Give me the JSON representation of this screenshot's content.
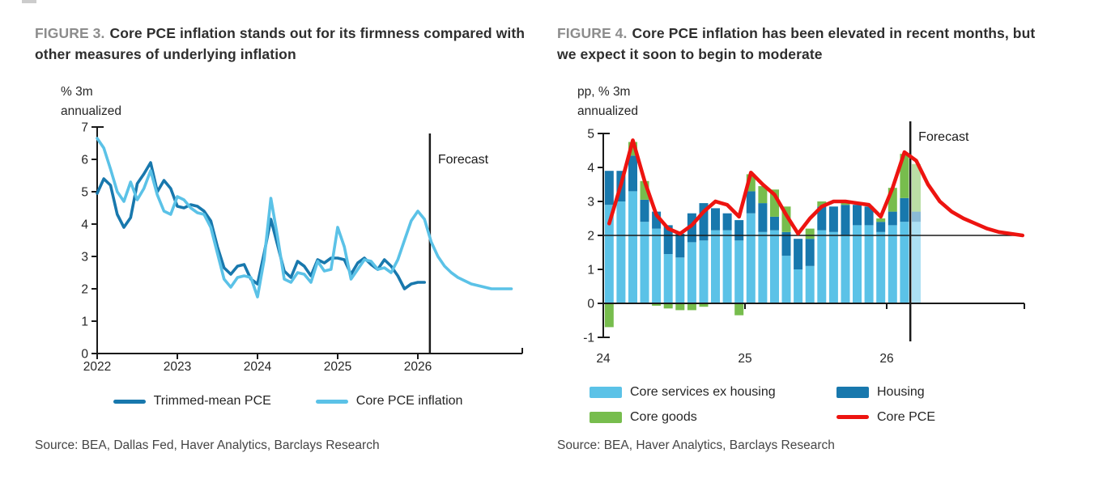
{
  "figures": [
    {
      "label": "FIGURE 3.",
      "title": "Core PCE inflation stands out for its firmness compared with other measures of underlying inflation",
      "source": "Source: BEA, Dallas Fed, Haver Analytics, Barclays Research",
      "legend": [
        {
          "label": "Trimmed-mean PCE",
          "color": "#1878ad"
        },
        {
          "label": "Core PCE inflation",
          "color": "#5bc2e7"
        }
      ]
    },
    {
      "label": "FIGURE 4.",
      "title": "Core PCE inflation has been elevated in recent months, but we expect it soon to begin to moderate",
      "source": "Source: BEA, Haver Analytics, Barclays Research",
      "legend": [
        {
          "label": "Core services ex housing",
          "color": "#5bc2e7"
        },
        {
          "label": "Housing",
          "color": "#1878ad"
        },
        {
          "label": "Core goods",
          "color": "#77bd4d"
        },
        {
          "label": "Core PCE",
          "color": "#ed1410"
        }
      ]
    }
  ],
  "chart_data": [
    {
      "type": "line",
      "title": "Core PCE inflation stands out for its firmness compared with other measures of underlying inflation",
      "ylabel": "% 3m annualized",
      "ylabel_lines": [
        "% 3m",
        "annualized"
      ],
      "xlabel": "",
      "x_start": 2022.0,
      "x_step": 0.0833,
      "xlim": [
        2022,
        2027.3
      ],
      "ylim": [
        0,
        7
      ],
      "yticks": [
        0,
        1,
        2,
        3,
        4,
        5,
        6,
        7
      ],
      "xticks": [
        {
          "label": "2022",
          "x": 2022
        },
        {
          "label": "2023",
          "x": 2023
        },
        {
          "label": "2024",
          "x": 2024
        },
        {
          "label": "2025",
          "x": 2025
        },
        {
          "label": "2026",
          "x": 2026
        }
      ],
      "forecast_x": 2026.15,
      "forecast_label": "Forecast",
      "grid": false,
      "legend_position": "bottom",
      "series": [
        {
          "name": "Trimmed-mean PCE",
          "color": "#1878ad",
          "values": [
            4.95,
            5.4,
            5.2,
            4.3,
            3.9,
            4.2,
            5.25,
            5.55,
            5.9,
            5.0,
            5.35,
            5.1,
            4.55,
            4.5,
            4.6,
            4.55,
            4.4,
            4.1,
            3.3,
            2.65,
            2.45,
            2.7,
            2.75,
            2.3,
            2.15,
            3.1,
            4.15,
            3.35,
            2.55,
            2.35,
            2.85,
            2.7,
            2.4,
            2.9,
            2.8,
            2.95,
            2.95,
            2.9,
            2.45,
            2.8,
            2.95,
            2.75,
            2.6,
            2.9,
            2.7,
            2.4,
            2.0,
            2.15,
            2.2,
            2.2
          ]
        },
        {
          "name": "Core PCE inflation",
          "color": "#5bc2e7",
          "values": [
            6.65,
            6.35,
            5.7,
            5.0,
            4.7,
            5.3,
            4.75,
            5.1,
            5.65,
            4.9,
            4.4,
            4.3,
            4.85,
            4.75,
            4.5,
            4.35,
            4.3,
            3.9,
            3.1,
            2.3,
            2.05,
            2.35,
            2.4,
            2.35,
            1.75,
            2.9,
            4.8,
            3.6,
            2.3,
            2.2,
            2.5,
            2.45,
            2.2,
            2.85,
            2.55,
            2.6,
            3.9,
            3.3,
            2.3,
            2.6,
            2.9,
            2.85,
            2.6,
            2.65,
            2.5,
            2.9,
            3.5,
            4.1,
            4.4,
            4.15,
            3.45,
            3.0,
            2.7,
            2.5,
            2.35,
            2.25,
            2.15,
            2.1,
            2.05,
            2.0,
            2.0,
            2.0,
            2.0
          ]
        }
      ]
    },
    {
      "type": "stacked-bar-with-line",
      "title": "Core PCE inflation has been elevated in recent months, but we expect it soon to begin to moderate",
      "ylabel": "pp, % 3m annualized",
      "ylabel_lines": [
        "pp, % 3m",
        "annualized"
      ],
      "xlabel": "",
      "x_start": 2024.0,
      "x_step": 0.0833,
      "xlim": [
        2024,
        2026.97
      ],
      "ylim": [
        -1,
        5
      ],
      "yticks": [
        -1,
        0,
        1,
        2,
        3,
        4,
        5
      ],
      "xticks": [
        {
          "label": "24",
          "x": 2024
        },
        {
          "label": "25",
          "x": 2025
        },
        {
          "label": "26",
          "x": 2026
        }
      ],
      "reference_line_y": 2,
      "forecast_x": 2026.1667,
      "forecast_label": "Forecast",
      "forecast_bar_index": 26,
      "grid": false,
      "legend_position": "bottom",
      "bar_series": [
        {
          "name": "Core services ex housing",
          "color": "#5bc2e7",
          "values": [
            2.9,
            3.0,
            3.3,
            2.4,
            2.2,
            1.45,
            1.35,
            1.8,
            1.85,
            2.15,
            2.15,
            1.85,
            2.65,
            2.1,
            2.15,
            1.4,
            1.0,
            1.1,
            2.15,
            2.1,
            2.0,
            2.3,
            2.3,
            2.1,
            2.3,
            2.4,
            2.4
          ]
        },
        {
          "name": "Housing",
          "color": "#1878ad",
          "values": [
            1.0,
            0.9,
            1.05,
            0.65,
            0.5,
            0.85,
            0.7,
            0.85,
            1.1,
            0.65,
            0.5,
            0.6,
            0.65,
            0.85,
            0.4,
            0.7,
            0.9,
            0.8,
            0.7,
            0.75,
            0.9,
            0.6,
            0.55,
            0.3,
            0.4,
            0.7,
            0.3
          ]
        },
        {
          "name": "Core goods",
          "color": "#77bd4d",
          "values": [
            -0.7,
            0,
            0.4,
            0.55,
            -0.07,
            -0.15,
            -0.2,
            -0.2,
            -0.1,
            0,
            0,
            -0.35,
            0.5,
            0.5,
            0.8,
            0.75,
            0,
            0.3,
            0.15,
            0,
            0.1,
            0,
            0,
            0.1,
            0.7,
            1.3,
            1.4
          ]
        }
      ],
      "line_series": {
        "name": "Core PCE",
        "color": "#ed1410",
        "values": [
          2.35,
          3.5,
          4.8,
          3.6,
          2.6,
          2.2,
          2.05,
          2.3,
          2.7,
          3.0,
          2.9,
          2.55,
          3.85,
          3.5,
          3.2,
          2.6,
          2.05,
          2.5,
          2.85,
          3.0,
          3.0,
          2.95,
          2.9,
          2.55,
          3.4,
          4.45,
          4.2,
          3.5,
          3.0,
          2.7,
          2.5,
          2.35,
          2.2,
          2.1,
          2.05,
          2.0
        ]
      }
    }
  ]
}
